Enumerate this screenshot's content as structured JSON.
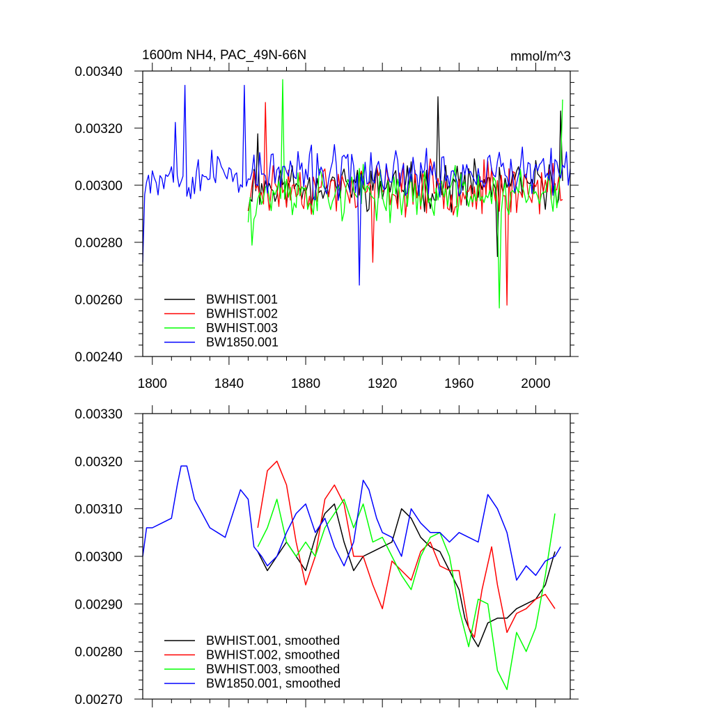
{
  "figure": {
    "title_left": "1600m NH4, PAC_49N-66N",
    "title_right": "mmol/m^3"
  },
  "chart_data": [
    {
      "type": "line",
      "title": "1600m NH4, PAC_49N-66N",
      "units": "mmol/m^3",
      "xlim": [
        1795,
        2018
      ],
      "ylim": [
        0.0024,
        0.0034
      ],
      "x_ticks": [
        1800,
        1840,
        1880,
        1920,
        1960,
        2000
      ],
      "x_tick_labels": [
        "1800",
        "1840",
        "1880",
        "1920",
        "1960",
        "2000"
      ],
      "y_ticks": [
        0.0024,
        0.0026,
        0.0028,
        0.003,
        0.0032,
        0.0034
      ],
      "y_tick_labels": [
        "0.00240",
        "0.00260",
        "0.00280",
        "0.00300",
        "0.00320",
        "0.00340"
      ],
      "legend_position": "bottom-left",
      "grid": false,
      "series": [
        {
          "name": "BWHIST.001",
          "color": "#000000",
          "start": 1850,
          "end": 2014,
          "mean": 0.003,
          "amp": 9e-05,
          "seed": 11,
          "key_points": [
            [
              1850,
              0.00291
            ],
            [
              1855,
              0.00318
            ],
            [
              1949,
              0.00331
            ],
            [
              1980,
              0.00275
            ],
            [
              2013,
              0.00326
            ]
          ]
        },
        {
          "name": "BWHIST.002",
          "color": "#ff0000",
          "start": 1850,
          "end": 2014,
          "mean": 0.00299,
          "amp": 0.0001,
          "seed": 23,
          "key_points": [
            [
              1850,
              0.00291
            ],
            [
              1859,
              0.00329
            ],
            [
              1915,
              0.00273
            ],
            [
              1985,
              0.00258
            ],
            [
              2014,
              0.00295
            ]
          ]
        },
        {
          "name": "BWHIST.003",
          "color": "#00ff00",
          "start": 1850,
          "end": 2014,
          "mean": 0.00297,
          "amp": 0.0001,
          "seed": 37,
          "key_points": [
            [
              1850,
              0.00287
            ],
            [
              1852,
              0.00279
            ],
            [
              1868,
              0.00337
            ],
            [
              1981,
              0.00257
            ],
            [
              2014,
              0.0033
            ]
          ]
        },
        {
          "name": "BW1850.001",
          "color": "#0000ff",
          "start": 1795,
          "end": 2018,
          "mean": 0.00304,
          "amp": 0.0001,
          "seed": 53,
          "key_points": [
            [
              1795,
              0.00273
            ],
            [
              1812,
              0.00322
            ],
            [
              1817,
              0.00335
            ],
            [
              1848,
              0.00335
            ],
            [
              1908,
              0.00265
            ],
            [
              2017,
              0.003
            ]
          ]
        }
      ]
    },
    {
      "type": "line",
      "xlim": [
        1795,
        2018
      ],
      "ylim": [
        0.0027,
        0.0033
      ],
      "x_ticks": [
        1800,
        1840,
        1880,
        1920,
        1960,
        2000
      ],
      "y_ticks": [
        0.0027,
        0.0028,
        0.0029,
        0.003,
        0.0031,
        0.0032,
        0.0033
      ],
      "y_tick_labels": [
        "0.00270",
        "0.00280",
        "0.00290",
        "0.00300",
        "0.00310",
        "0.00320",
        "0.00330"
      ],
      "legend_position": "bottom-left",
      "grid": false,
      "series": [
        {
          "name": "BWHIST.001, smoothed",
          "color": "#000000",
          "x": [
            1855,
            1860,
            1865,
            1870,
            1875,
            1880,
            1885,
            1890,
            1895,
            1900,
            1905,
            1910,
            1915,
            1920,
            1925,
            1930,
            1935,
            1940,
            1945,
            1950,
            1955,
            1960,
            1963,
            1967,
            1970,
            1975,
            1980,
            1985,
            1990,
            1995,
            2000,
            2005,
            2010
          ],
          "y": [
            0.00301,
            0.00297,
            0.003,
            0.00303,
            0.003,
            0.00297,
            0.00304,
            0.00309,
            0.00311,
            0.00303,
            0.00297,
            0.003,
            0.00301,
            0.00302,
            0.00303,
            0.0031,
            0.00308,
            0.00304,
            0.00302,
            0.00301,
            0.00297,
            0.00293,
            0.00287,
            0.00283,
            0.00281,
            0.00286,
            0.00287,
            0.00287,
            0.00289,
            0.0029,
            0.00291,
            0.00294,
            0.00301
          ]
        },
        {
          "name": "BWHIST.002, smoothed",
          "color": "#ff0000",
          "x": [
            1855,
            1860,
            1865,
            1870,
            1875,
            1880,
            1885,
            1890,
            1895,
            1900,
            1905,
            1910,
            1915,
            1920,
            1925,
            1930,
            1935,
            1940,
            1945,
            1950,
            1955,
            1960,
            1965,
            1968,
            1972,
            1977,
            1980,
            1985,
            1990,
            1995,
            2000,
            2005,
            2010
          ],
          "y": [
            0.00306,
            0.00318,
            0.0032,
            0.00315,
            0.00303,
            0.00294,
            0.003,
            0.00312,
            0.00315,
            0.00311,
            0.003,
            0.003,
            0.00294,
            0.00289,
            0.00299,
            0.00297,
            0.00295,
            0.00301,
            0.00303,
            0.00298,
            0.00297,
            0.00297,
            0.00285,
            0.00283,
            0.00293,
            0.00302,
            0.00294,
            0.00284,
            0.00288,
            0.00289,
            0.00291,
            0.00292,
            0.00289
          ]
        },
        {
          "name": "BWHIST.003, smoothed",
          "color": "#00ff00",
          "x": [
            1855,
            1860,
            1865,
            1870,
            1875,
            1880,
            1885,
            1890,
            1895,
            1900,
            1905,
            1910,
            1915,
            1920,
            1925,
            1930,
            1935,
            1940,
            1945,
            1950,
            1955,
            1960,
            1965,
            1970,
            1975,
            1980,
            1985,
            1990,
            1995,
            2000,
            2005,
            2010
          ],
          "y": [
            0.00302,
            0.00306,
            0.00312,
            0.00303,
            0.003,
            0.00303,
            0.003,
            0.00306,
            0.00309,
            0.00312,
            0.00306,
            0.00311,
            0.00303,
            0.00304,
            0.003,
            0.00296,
            0.00293,
            0.003,
            0.00304,
            0.00305,
            0.003,
            0.00289,
            0.00281,
            0.00291,
            0.0029,
            0.00276,
            0.00272,
            0.00284,
            0.0028,
            0.00285,
            0.00296,
            0.00309
          ]
        },
        {
          "name": "BW1850.001, smoothed",
          "color": "#0000ff",
          "x": [
            1795,
            1797,
            1800,
            1805,
            1810,
            1813,
            1815,
            1818,
            1822,
            1826,
            1830,
            1834,
            1838,
            1842,
            1846,
            1850,
            1853,
            1857,
            1860,
            1865,
            1870,
            1875,
            1880,
            1885,
            1890,
            1895,
            1900,
            1905,
            1910,
            1913,
            1917,
            1920,
            1925,
            1930,
            1935,
            1940,
            1945,
            1950,
            1955,
            1960,
            1965,
            1970,
            1975,
            1980,
            1985,
            1990,
            1995,
            2000,
            2005,
            2010,
            2013
          ],
          "y": [
            0.003,
            0.00306,
            0.00306,
            0.00307,
            0.00308,
            0.00315,
            0.00319,
            0.00319,
            0.00312,
            0.00309,
            0.00306,
            0.00305,
            0.00304,
            0.00309,
            0.00314,
            0.00312,
            0.00302,
            0.003,
            0.00298,
            0.003,
            0.00305,
            0.00309,
            0.00311,
            0.00305,
            0.00308,
            0.00302,
            0.00298,
            0.00303,
            0.00316,
            0.00314,
            0.00308,
            0.00305,
            0.00304,
            0.003,
            0.0031,
            0.00307,
            0.00305,
            0.00305,
            0.00303,
            0.00305,
            0.00304,
            0.00303,
            0.00313,
            0.0031,
            0.00305,
            0.00295,
            0.00298,
            0.00296,
            0.00299,
            0.003,
            0.00302
          ]
        }
      ]
    }
  ]
}
